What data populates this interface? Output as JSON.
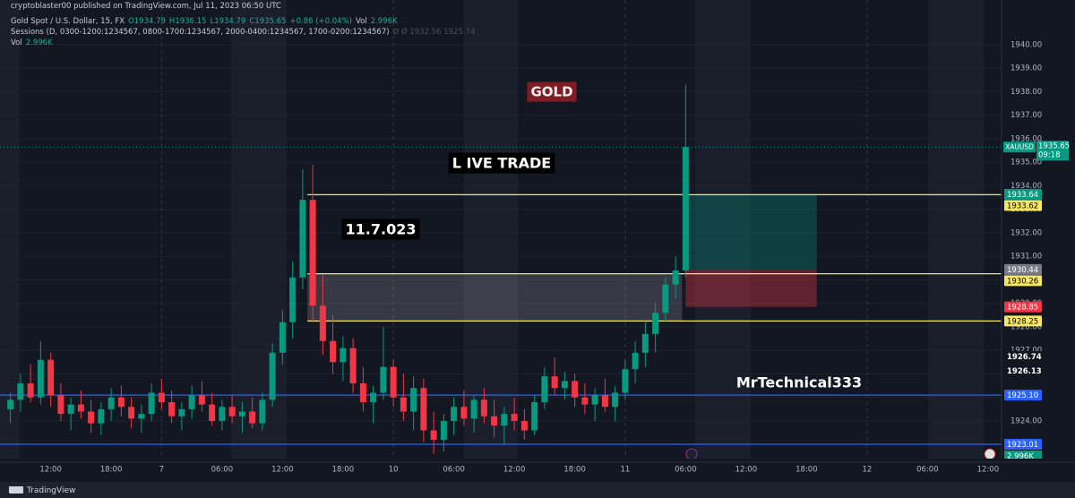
{
  "chart_data": {
    "type": "candlestick",
    "publisher": "cryptoblaster00 published on TradingView.com, Jul 11, 2023 06:50 UTC",
    "title": "Gold Spot / U.S. Dollar, 15, FX",
    "ohlc_legend": [
      "O1934.79",
      "H1936.15",
      "L1934.79",
      "C1935.65",
      "+0.86 (+0.04%)"
    ],
    "volume_label": "Vol",
    "volume_last": "2.996K",
    "sessions": "Sessions (D, 0300-1200:1234567, 0800-1700:1234567, 2000-0400:1234567, 1700-0200:1234567)",
    "sessions_values": "Ø  Ø  1932.56  1925.74",
    "annotations": [
      "GOLD",
      "L IVE TRADE",
      "11.7.023",
      "MrTechnical333"
    ],
    "footer": "TradingView",
    "symbol": "XAUUSD",
    "countdown": "09:18",
    "current_price": {
      "value": 1935.65,
      "label": "1935.65",
      "color": "#089981"
    },
    "up_color": "#089981",
    "down_color": "#f23645",
    "ylim": [
      1922.4,
      1941.9
    ],
    "yticks": [
      {
        "value": 1924,
        "label": "1924.00"
      },
      {
        "value": 1925,
        "label": "1925.00"
      },
      {
        "value": 1926,
        "label": "1926.00"
      },
      {
        "value": 1927,
        "label": "1927.00"
      },
      {
        "value": 1928,
        "label": "1928.00"
      },
      {
        "value": 1929,
        "label": "1929.00"
      },
      {
        "value": 1930,
        "label": "1930.00"
      },
      {
        "value": 1931,
        "label": "1931.00"
      },
      {
        "value": 1932,
        "label": "1932.00"
      },
      {
        "value": 1933,
        "label": "1933.00"
      },
      {
        "value": 1934,
        "label": "1934.00"
      },
      {
        "value": 1935,
        "label": "1935.00"
      },
      {
        "value": 1936,
        "label": "1936.00"
      },
      {
        "value": 1937,
        "label": "1937.00"
      },
      {
        "value": 1938,
        "label": "1938.00"
      },
      {
        "value": 1939,
        "label": "1939.00"
      },
      {
        "value": 1940,
        "label": "1940.00"
      }
    ],
    "levels": [
      {
        "value": 1933.62,
        "label": "1933.62",
        "color": "#f5e663"
      },
      {
        "value": 1930.26,
        "label": "1930.26",
        "color": "#f5e663"
      },
      {
        "value": 1928.25,
        "label": "1928.25",
        "color": "#f5e663"
      }
    ],
    "support_lines": [
      {
        "value": 1925.1,
        "label": "1925.10",
        "color": "#2962ff"
      },
      {
        "value": 1923.01,
        "label": "1923.01",
        "color": "#2962ff"
      }
    ],
    "position": {
      "target": {
        "value": 1933.64,
        "label": "1933.64",
        "color": "#089981"
      },
      "entry": {
        "value": 1930.44,
        "label": "1930.44",
        "color": "#787b86"
      },
      "stop": {
        "value": 1928.85,
        "label": "1928.85",
        "color": "#f23645"
      }
    },
    "price_marks": [
      {
        "value": 1926.74,
        "label": "1926.74"
      },
      {
        "value": 1926.13,
        "label": "1926.13"
      }
    ],
    "categories": [
      null,
      null,
      null,
      null,
      "12:00",
      null,
      null,
      null,
      null,
      null,
      "18:00",
      null,
      null,
      null,
      null,
      "7",
      null,
      null,
      null,
      null,
      null,
      "06:00",
      null,
      null,
      null,
      null,
      null,
      "12:00",
      null,
      null,
      null,
      null,
      null,
      "18:00",
      null,
      null,
      null,
      null,
      "10",
      null,
      null,
      null,
      null,
      null,
      "06:00",
      null,
      null,
      null,
      null,
      null,
      "12:00",
      null,
      null,
      null,
      null,
      null,
      "18:00",
      null,
      null,
      null,
      null,
      "11",
      null,
      null,
      null,
      null,
      null,
      "06:00",
      null,
      null,
      null,
      null,
      null,
      "12:00",
      null,
      null,
      null,
      null,
      null,
      "18:00",
      null,
      null,
      null,
      null,
      null,
      "12",
      null,
      null,
      null,
      null,
      null,
      "06:00",
      null,
      null,
      null,
      null,
      null,
      "12:00",
      null
    ],
    "open": [
      1924.5,
      1924.9,
      1925.6,
      1925.0,
      1926.6,
      1925.1,
      1924.3,
      1924.7,
      1924.4,
      1923.9,
      1924.5,
      1925.0,
      1924.6,
      1924.1,
      1924.3,
      1925.2,
      1924.8,
      1924.2,
      1924.5,
      1925.1,
      1924.7,
      1924.0,
      1924.6,
      1924.2,
      1924.4,
      1923.9,
      1924.9,
      1926.9,
      1928.2,
      1930.1,
      1933.4,
      1928.9,
      1927.4,
      1926.5,
      1927.1,
      1925.6,
      1924.8,
      1925.2,
      1926.3,
      1925.0,
      1924.4,
      1925.4,
      1923.6,
      1923.2,
      1924.0,
      1924.6,
      1924.1,
      1924.9,
      1924.2,
      1923.8,
      1924.3,
      1924.0,
      1923.6,
      1924.8,
      1925.9,
      1925.4,
      1925.7,
      1925.0,
      1924.7,
      1925.1,
      1924.6,
      1925.2,
      1926.2,
      1926.9,
      1927.7,
      1928.6,
      1929.8,
      1930.4,
      null,
      null,
      null,
      null,
      null,
      null,
      null,
      null,
      null,
      null,
      null,
      null,
      null,
      null,
      null,
      null,
      null,
      null,
      null,
      null,
      null,
      null,
      null,
      null,
      null,
      null,
      null,
      null,
      null,
      null,
      null
    ],
    "high": [
      1925.2,
      1926.0,
      1926.4,
      1927.4,
      1926.9,
      1925.6,
      1925.0,
      1925.3,
      1924.9,
      1924.8,
      1925.4,
      1925.5,
      1925.0,
      1924.7,
      1925.6,
      1925.8,
      1925.3,
      1924.8,
      1925.5,
      1925.7,
      1925.2,
      1924.9,
      1925.1,
      1924.8,
      1925.0,
      1925.2,
      1927.3,
      1928.7,
      1930.8,
      1934.7,
      1934.9,
      1930.2,
      1928.5,
      1927.6,
      1927.5,
      1926.3,
      1925.5,
      1928.0,
      1926.6,
      1926.0,
      1925.9,
      1925.8,
      1924.4,
      1924.3,
      1925.0,
      1925.3,
      1925.1,
      1925.4,
      1924.9,
      1924.6,
      1925.0,
      1924.5,
      1925.1,
      1926.3,
      1926.7,
      1926.1,
      1926.0,
      1925.6,
      1925.4,
      1925.8,
      1925.5,
      1926.6,
      1927.4,
      1928.2,
      1929.0,
      1930.1,
      1931.0,
      1938.3,
      null,
      null,
      null,
      null,
      null,
      null,
      null,
      null,
      null,
      null,
      null,
      null,
      null,
      null,
      null,
      null,
      null,
      null,
      null,
      null,
      null,
      null,
      null,
      null,
      null,
      null,
      null,
      null,
      null,
      null,
      null
    ],
    "low": [
      1923.9,
      1924.4,
      1924.8,
      1924.7,
      1924.6,
      1924.0,
      1923.6,
      1924.1,
      1923.5,
      1923.4,
      1924.0,
      1924.2,
      1923.7,
      1923.5,
      1924.0,
      1924.5,
      1923.9,
      1923.6,
      1924.1,
      1924.4,
      1923.8,
      1923.6,
      1923.9,
      1923.5,
      1923.7,
      1923.6,
      1924.6,
      1926.4,
      1927.5,
      1929.6,
      1928.2,
      1926.8,
      1926.0,
      1925.7,
      1925.2,
      1924.4,
      1923.9,
      1924.9,
      1924.6,
      1924.0,
      1923.6,
      1923.1,
      1922.6,
      1922.7,
      1923.4,
      1923.8,
      1923.5,
      1923.9,
      1923.3,
      1923.0,
      1923.6,
      1923.2,
      1923.4,
      1924.5,
      1925.1,
      1924.9,
      1924.6,
      1924.3,
      1924.0,
      1924.4,
      1924.0,
      1924.9,
      1925.6,
      1926.3,
      1926.9,
      1928.2,
      1929.2,
      1930.1,
      null,
      null,
      null,
      null,
      null,
      null,
      null,
      null,
      null,
      null,
      null,
      null,
      null,
      null,
      null,
      null,
      null,
      null,
      null,
      null,
      null,
      null,
      null,
      null,
      null,
      null,
      null,
      null,
      null,
      null,
      null
    ],
    "close": [
      1924.9,
      1925.6,
      1925.0,
      1926.6,
      1925.1,
      1924.3,
      1924.7,
      1924.4,
      1923.9,
      1924.5,
      1925.0,
      1924.6,
      1924.1,
      1924.3,
      1925.2,
      1924.8,
      1924.2,
      1924.5,
      1925.1,
      1924.7,
      1924.0,
      1924.6,
      1924.2,
      1924.4,
      1923.9,
      1924.9,
      1926.9,
      1928.2,
      1930.1,
      1933.4,
      1928.9,
      1927.4,
      1926.5,
      1927.1,
      1925.6,
      1924.8,
      1925.2,
      1926.3,
      1925.0,
      1924.4,
      1925.4,
      1923.6,
      1923.2,
      1924.0,
      1924.6,
      1924.1,
      1924.9,
      1924.2,
      1923.8,
      1924.3,
      1924.0,
      1923.6,
      1924.8,
      1925.9,
      1925.4,
      1925.7,
      1925.0,
      1924.7,
      1925.1,
      1924.6,
      1925.2,
      1926.2,
      1926.9,
      1927.7,
      1928.6,
      1929.8,
      1930.4,
      1935.65,
      null,
      null,
      null,
      null,
      null,
      null,
      null,
      null,
      null,
      null,
      null,
      null,
      null,
      null,
      null,
      null,
      null,
      null,
      null,
      null,
      null,
      null,
      null,
      null,
      null,
      null,
      null,
      null,
      null,
      null,
      null
    ]
  }
}
